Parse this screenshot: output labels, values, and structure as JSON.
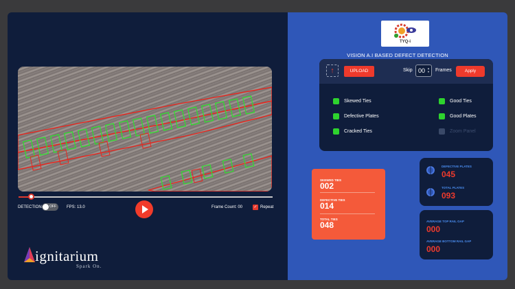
{
  "player": {
    "detection_label": "DETECTION",
    "toggle_state": "OFF",
    "fps_label": "FPS: 13.0",
    "frame_count_label": "Frame Count: 00",
    "repeat_label": "Repeat",
    "seek_progress": 0.05
  },
  "footer_logo": {
    "name": "ignitarium",
    "tagline": "Spark On."
  },
  "brand": {
    "logo_text": "TYQ-i"
  },
  "app_title": "VISION A.I  BASED DEFECT DETECTION",
  "toolbar": {
    "upload_label": "UPLOAD",
    "skip_label": "Skip",
    "skip_value": "00",
    "frames_label": "Frames",
    "apply_label": "Apply"
  },
  "options_left": [
    {
      "label": "Skewed Ties",
      "checked": true
    },
    {
      "label": "Defective Plates",
      "checked": true
    },
    {
      "label": "Cracked Ties",
      "checked": true
    }
  ],
  "options_right": [
    {
      "label": "Good Ties",
      "checked": true
    },
    {
      "label": "Good  Plates",
      "checked": true
    },
    {
      "label": "Zoom Panel",
      "checked": false
    }
  ],
  "ties_stats": [
    {
      "label": "SKEWED TIES",
      "value": "002"
    },
    {
      "label": "DEFECTIVE TIES",
      "value": "014"
    },
    {
      "label": "TOTAL TIES",
      "value": "048"
    }
  ],
  "plate_stats": [
    {
      "label": "DEFECTIVE PLATES",
      "value": "045"
    },
    {
      "label": "TOTAL PLATES",
      "value": "093"
    }
  ],
  "rail_gap_stats": [
    {
      "label": "AVERAGE TOP RAIL GAP",
      "value": "000"
    },
    {
      "label": "AVERAGE BOTTOM RAIL GAP",
      "value": "000"
    }
  ],
  "colors": {
    "left_bg": "#0f1d3b",
    "right_bg": "#2f57b8",
    "accent_red": "#ee3a2c",
    "orange_card": "#f45a3a",
    "ok_green": "#2ed32e",
    "label_blue": "#4a8df0"
  }
}
